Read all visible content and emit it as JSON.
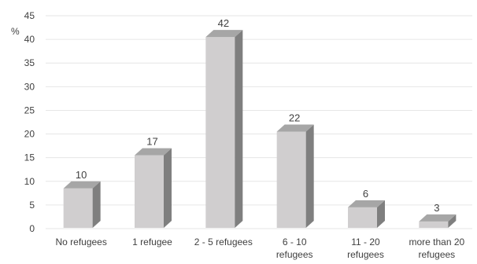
{
  "chart_data": {
    "type": "bar",
    "title": "",
    "xlabel": "",
    "ylabel": "%",
    "ylim": [
      0,
      45
    ],
    "yticks": [
      0,
      5,
      10,
      15,
      20,
      25,
      30,
      35,
      40,
      45
    ],
    "grid": true,
    "legend": "none",
    "categories": [
      [
        "No refugees"
      ],
      [
        "1 refugee"
      ],
      [
        "2 - 5 refugees"
      ],
      [
        "6 - 10",
        "refugees"
      ],
      [
        "11 - 20",
        "refugees"
      ],
      [
        "more than 20",
        "refugees"
      ]
    ],
    "values": [
      10,
      17,
      42,
      22,
      6,
      3
    ],
    "data_labels": [
      "10",
      "17",
      "42",
      "22",
      "6",
      "3"
    ],
    "colors": {
      "bar_front": "#d0cecf",
      "bar_side": "#7f7f7f",
      "bar_top": "#a6a6a6",
      "grid": "#e6e6e6",
      "text": "#404040"
    }
  }
}
